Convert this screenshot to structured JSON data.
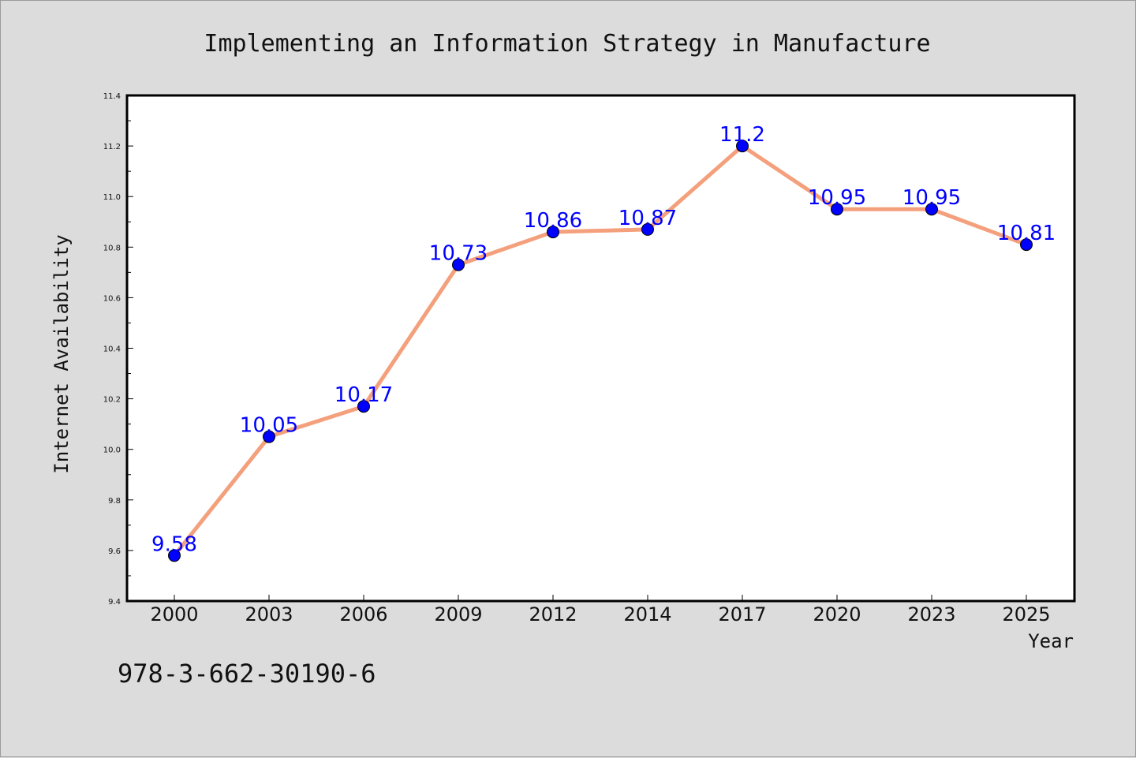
{
  "chart_data": {
    "type": "line",
    "title": "Implementing an Information Strategy in Manufacture",
    "xlabel": "Year",
    "ylabel": "Internet Availability",
    "categories": [
      "2000",
      "2003",
      "2006",
      "2009",
      "2012",
      "2014",
      "2017",
      "2020",
      "2023",
      "2025"
    ],
    "series": [
      {
        "values": [
          9.58,
          10.05,
          10.17,
          10.73,
          10.86,
          10.87,
          11.2,
          10.95,
          10.95,
          10.81
        ],
        "data_labels": [
          "9.58",
          "10.05",
          "10.17",
          "10.73",
          "10.86",
          "10.87",
          "11.2",
          "10.95",
          "10.95",
          "10.81"
        ],
        "line_color": "#f4a07c",
        "marker_color": "#0000ff"
      }
    ],
    "ylim": [
      9.4,
      11.4
    ],
    "yticks": [
      "9.4",
      "9.6",
      "9.8",
      "10.0",
      "10.2",
      "10.4",
      "10.6",
      "10.8",
      "11.0",
      "11.2",
      "11.4"
    ],
    "grid": false,
    "label_color": "#0000ff"
  },
  "footer": {
    "isbn": "978-3-662-30190-6"
  }
}
